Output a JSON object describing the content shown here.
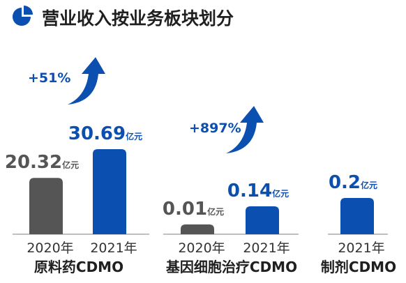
{
  "title": "营业收入按业务板块划分",
  "colors": {
    "accent": "#0b4fb0",
    "prior": "#555555",
    "axis": "#bfbfbf",
    "text": "#1f1f1f"
  },
  "chart_data": {
    "type": "bar",
    "title": "营业收入按业务板块划分",
    "unit": "亿元",
    "groups": [
      {
        "category": "原料药CDMO",
        "growth": "+51%",
        "bars": [
          {
            "year": "2020年",
            "value": 20.32,
            "label": "20.32"
          },
          {
            "year": "2021年",
            "value": 30.69,
            "label": "30.69"
          }
        ]
      },
      {
        "category": "基因细胞治疗CDMO",
        "growth": "+897%",
        "bars": [
          {
            "year": "2020年",
            "value": 0.01,
            "label": "0.01"
          },
          {
            "year": "2021年",
            "value": 0.14,
            "label": "0.14"
          }
        ]
      },
      {
        "category": "制剂CDMO",
        "growth": "",
        "bars": [
          {
            "year": "2021年",
            "value": 0.2,
            "label": "0.2"
          }
        ]
      }
    ]
  }
}
